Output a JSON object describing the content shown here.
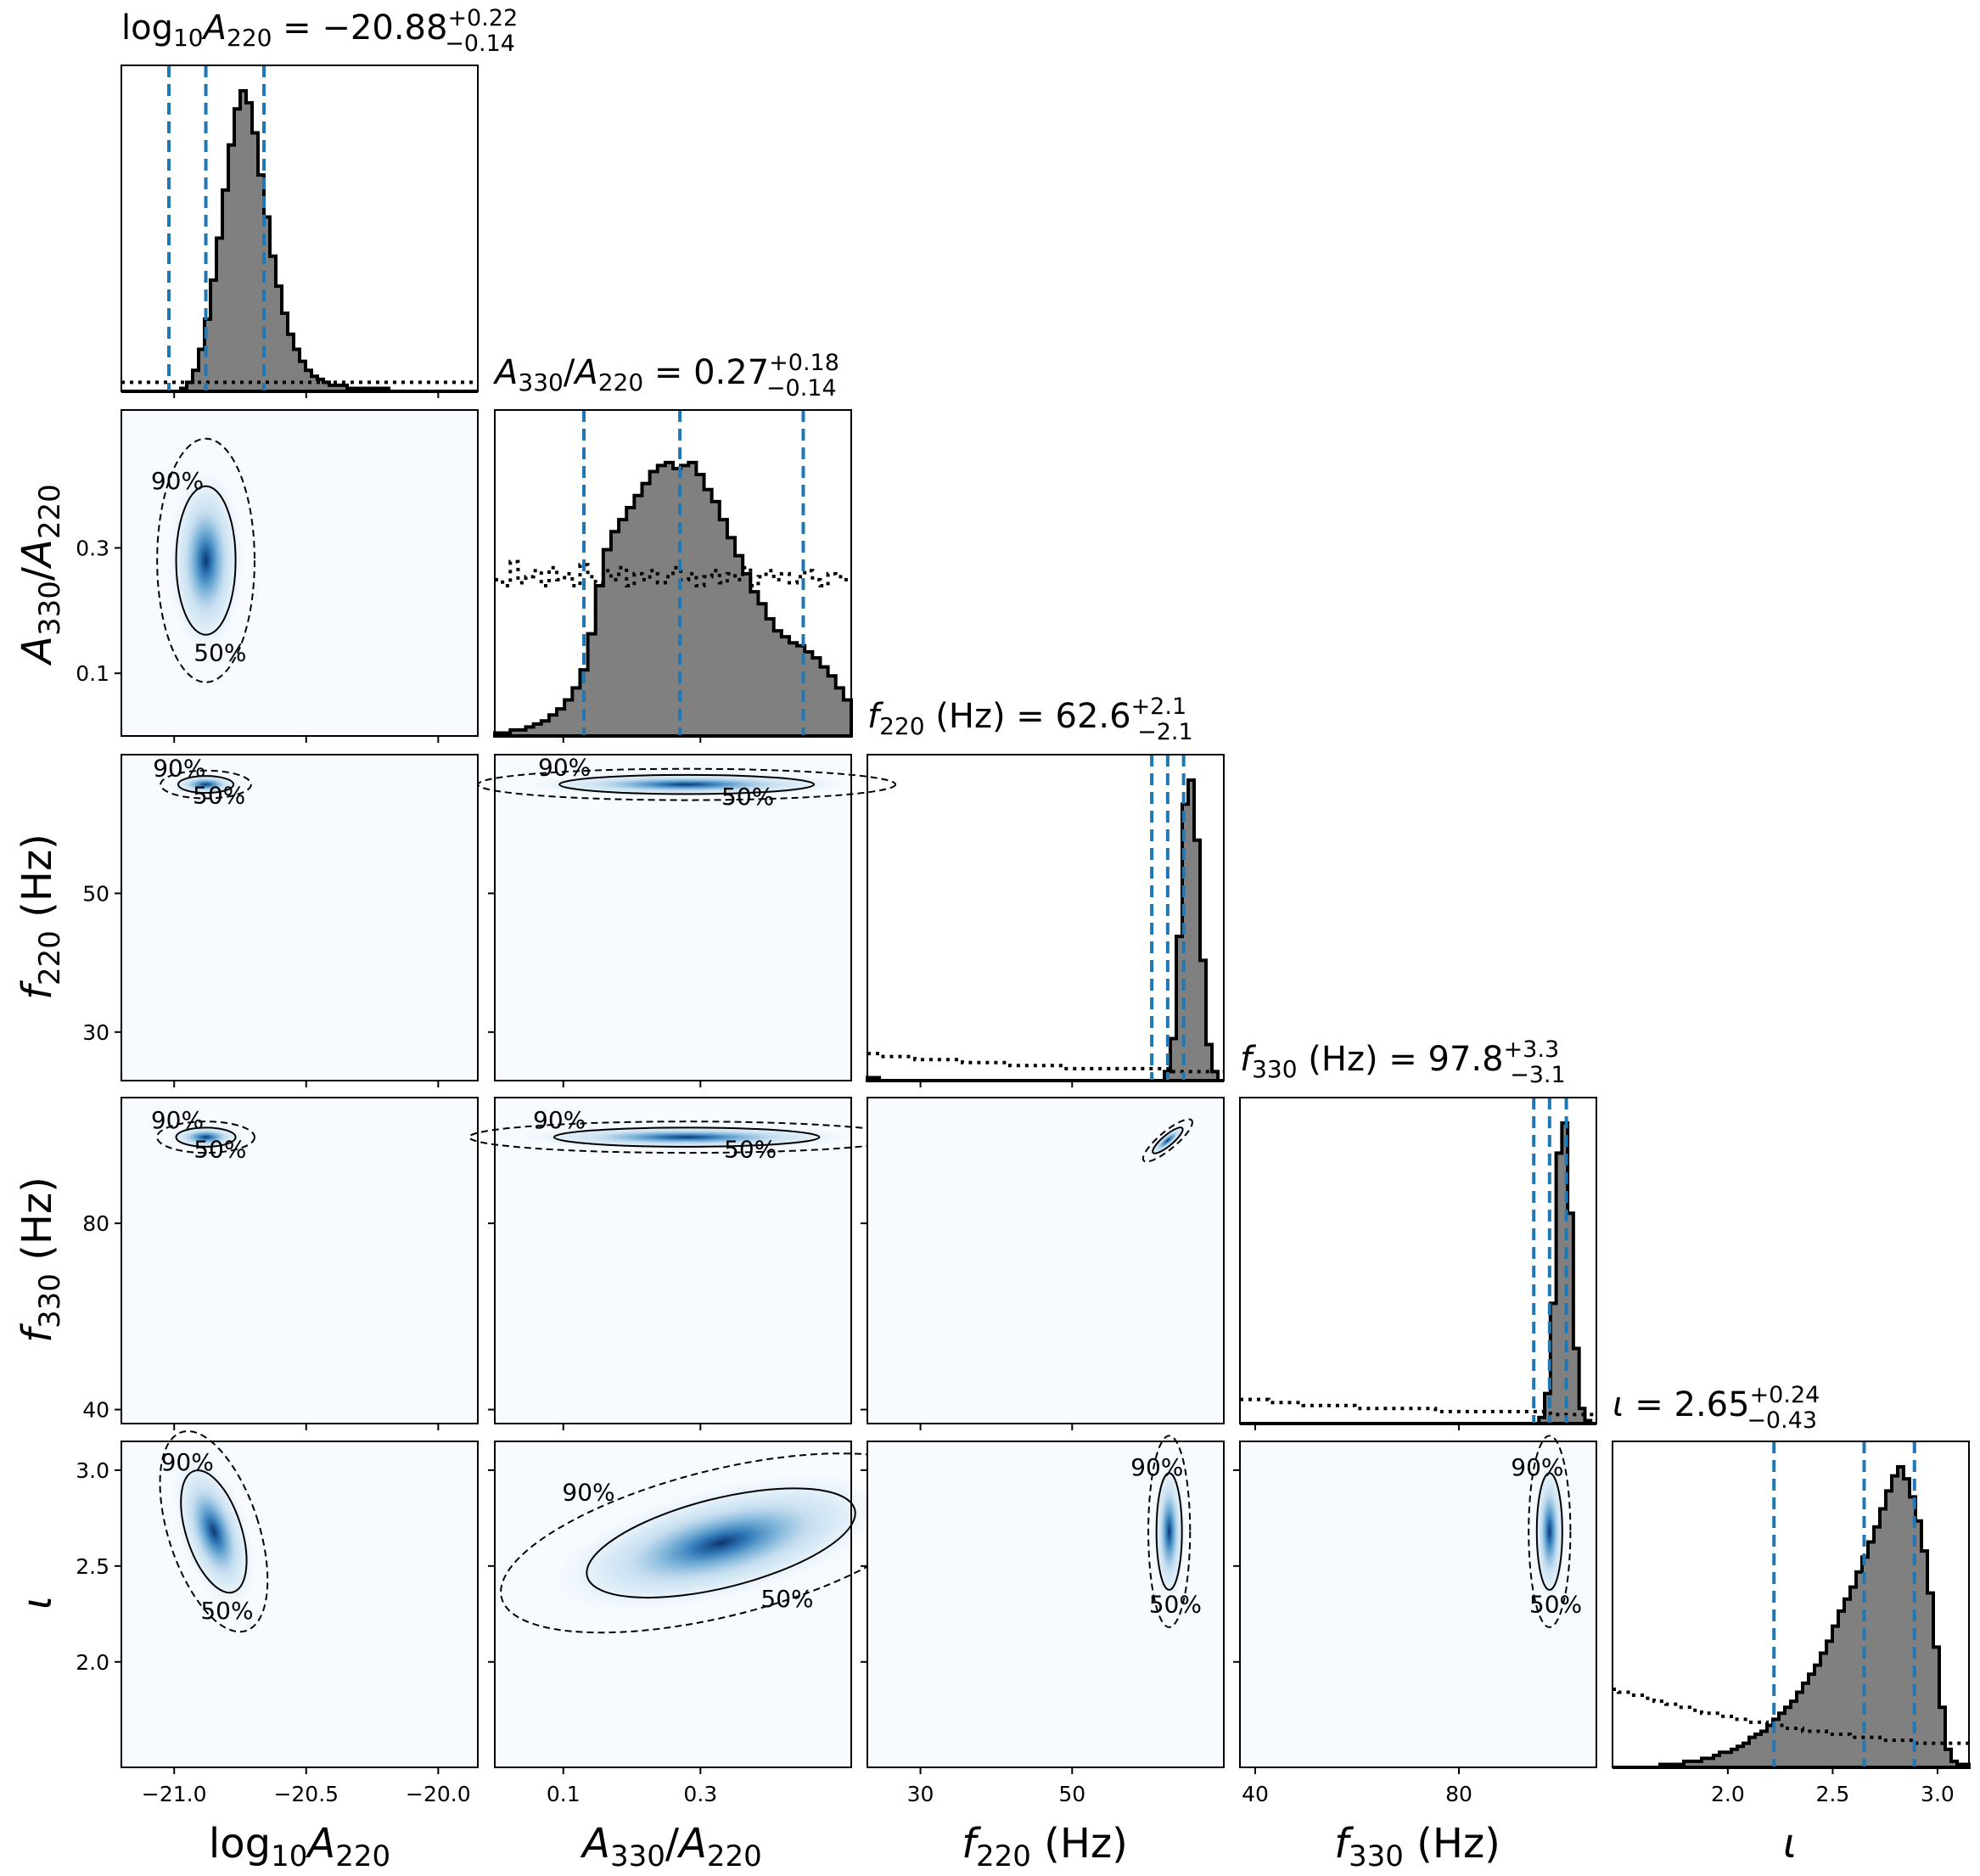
{
  "chart_data": {
    "type": "corner",
    "parameters": [
      {
        "key": "logA220",
        "label": "log10A220",
        "range": [
          -21.2,
          -19.85
        ],
        "ticks": [
          -21.0,
          -20.5,
          -20.0
        ],
        "tick_labels": [
          "−21.0",
          "−20.5",
          "−20.0"
        ],
        "title": {
          "median": "−20.88",
          "plus": "+0.22",
          "minus": "−0.14"
        },
        "quantiles": [
          -21.02,
          -20.88,
          -20.66
        ]
      },
      {
        "key": "ratio",
        "label": "A330/A220",
        "range": [
          0.0,
          0.52
        ],
        "ticks": [
          0.1,
          0.3
        ],
        "tick_labels": [
          "0.1",
          "0.3"
        ],
        "title": {
          "median": "0.27",
          "plus": "+0.18",
          "minus": "−0.14"
        },
        "quantiles": [
          0.13,
          0.27,
          0.45
        ]
      },
      {
        "key": "f220",
        "label": "f220 (Hz)",
        "range": [
          23,
          70
        ],
        "ticks": [
          30,
          50
        ],
        "tick_labels": [
          "30",
          "50"
        ],
        "title": {
          "median": "62.6",
          "plus": "+2.1",
          "minus": "−2.1"
        },
        "quantiles": [
          60.5,
          62.6,
          64.7
        ]
      },
      {
        "key": "f330",
        "label": "f330 (Hz)",
        "range": [
          37,
          107
        ],
        "ticks": [
          40,
          80
        ],
        "tick_labels": [
          "40",
          "80"
        ],
        "title": {
          "median": "97.8",
          "plus": "+3.3",
          "minus": "−3.1"
        },
        "quantiles": [
          94.7,
          97.8,
          101.1
        ]
      },
      {
        "key": "iota",
        "label": "ι",
        "range": [
          1.45,
          3.15
        ],
        "ticks": [
          2.0,
          2.5,
          3.0
        ],
        "tick_labels": [
          "2.0",
          "2.5",
          "3.0"
        ],
        "title": {
          "median": "2.65",
          "plus": "+0.24",
          "minus": "−0.43"
        },
        "quantiles": [
          2.22,
          2.65,
          2.89
        ]
      }
    ],
    "marginals": [
      {
        "posterior": [
          0,
          0,
          0,
          0,
          0,
          0,
          0,
          0,
          0,
          0,
          1,
          3,
          7,
          14,
          24,
          37,
          51,
          67,
          82,
          94,
          100,
          96,
          86,
          72,
          58,
          45,
          35,
          26,
          19,
          14,
          10,
          7,
          5,
          4,
          3,
          2,
          2,
          2,
          1,
          1,
          1,
          1,
          1,
          1,
          1,
          0,
          0,
          0,
          0,
          0,
          0,
          0,
          0,
          0,
          0,
          0,
          0,
          0,
          0,
          0
        ],
        "prior": [
          3,
          3,
          3,
          3,
          3,
          3,
          3,
          3,
          3,
          3,
          3,
          3,
          3,
          3,
          3,
          3,
          3,
          3,
          3,
          3,
          3,
          3,
          3,
          3,
          3,
          3,
          3,
          3,
          3,
          3,
          3,
          3,
          3,
          3,
          3,
          3,
          3,
          3,
          3,
          3,
          3,
          3,
          3,
          3,
          3,
          3,
          3,
          3,
          3,
          3,
          3,
          3,
          3,
          3,
          3,
          3,
          3,
          3,
          3,
          3
        ]
      },
      {
        "posterior": [
          1,
          1,
          2,
          2,
          3,
          4,
          5,
          7,
          9,
          12,
          16,
          22,
          34,
          50,
          62,
          68,
          72,
          76,
          80,
          84,
          88,
          90,
          91,
          89,
          90,
          91,
          87,
          82,
          78,
          72,
          66,
          60,
          54,
          48,
          44,
          39,
          35,
          33,
          31,
          30,
          28,
          26,
          23,
          20,
          16,
          12
        ],
        "prior": [
          52,
          50,
          58,
          51,
          53,
          55,
          50,
          56,
          52,
          54,
          50,
          57,
          53,
          51,
          55,
          52,
          56,
          50,
          54,
          52,
          55,
          51,
          53,
          56,
          52,
          54,
          50,
          53,
          55,
          51,
          54,
          52,
          56,
          50,
          53,
          55,
          52,
          54,
          51,
          53,
          55,
          52,
          50,
          54,
          53,
          52
        ]
      },
      {
        "posterior": [
          1,
          1,
          0,
          0,
          0,
          0,
          0,
          0,
          0,
          0,
          0,
          0,
          0,
          0,
          0,
          0,
          0,
          0,
          0,
          0,
          0,
          0,
          0,
          0,
          0,
          0,
          0,
          0,
          0,
          0,
          0,
          0,
          0,
          0,
          0,
          0,
          0,
          0,
          0,
          0,
          0,
          0,
          0,
          0,
          0,
          0,
          0,
          0,
          0,
          0,
          3,
          14,
          48,
          92,
          100,
          80,
          40,
          12,
          3,
          0
        ],
        "prior": [
          9,
          9,
          8,
          8,
          8,
          8,
          8,
          8,
          7,
          7,
          7,
          7,
          7,
          7,
          7,
          7,
          6,
          6,
          6,
          6,
          6,
          6,
          6,
          6,
          5,
          5,
          5,
          5,
          5,
          5,
          5,
          5,
          5,
          4,
          4,
          4,
          4,
          4,
          4,
          4,
          4,
          4,
          4,
          4,
          4,
          4,
          4,
          4,
          4,
          4,
          4,
          3,
          3,
          3,
          3,
          3,
          3,
          3,
          3,
          3
        ]
      },
      {
        "posterior": [
          0,
          0,
          0,
          0,
          0,
          0,
          0,
          0,
          0,
          0,
          0,
          0,
          0,
          0,
          0,
          0,
          0,
          0,
          0,
          0,
          0,
          0,
          0,
          0,
          0,
          0,
          0,
          0,
          0,
          0,
          0,
          0,
          0,
          0,
          0,
          0,
          0,
          0,
          0,
          0,
          0,
          0,
          0,
          0,
          0,
          0,
          0,
          0,
          0,
          0,
          0,
          0,
          2,
          10,
          40,
          90,
          100,
          70,
          25,
          5,
          1,
          0
        ],
        "prior": [
          8,
          8,
          8,
          8,
          8,
          7,
          7,
          7,
          7,
          7,
          7,
          6,
          6,
          6,
          6,
          6,
          6,
          6,
          6,
          6,
          5,
          5,
          5,
          5,
          5,
          5,
          5,
          5,
          5,
          5,
          5,
          5,
          5,
          5,
          4,
          4,
          4,
          4,
          4,
          4,
          4,
          4,
          4,
          4,
          4,
          4,
          4,
          4,
          4,
          4,
          4,
          4,
          4,
          4,
          3,
          3,
          3,
          3,
          3,
          3,
          3,
          3
        ]
      },
      {
        "posterior": [
          0,
          0,
          0,
          0,
          0,
          0,
          0,
          0,
          1,
          1,
          1,
          1,
          2,
          2,
          2,
          3,
          3,
          4,
          5,
          5,
          6,
          7,
          8,
          10,
          11,
          12,
          14,
          16,
          18,
          20,
          22,
          25,
          28,
          31,
          34,
          38,
          42,
          47,
          52,
          56,
          60,
          65,
          70,
          75,
          80,
          86,
          92,
          97,
          100,
          96,
          90,
          82,
          72,
          58,
          40,
          20,
          6,
          2,
          1,
          1
        ],
        "prior": [
          26,
          25,
          25,
          24,
          24,
          23,
          23,
          22,
          22,
          21,
          21,
          20,
          20,
          19,
          19,
          18,
          18,
          18,
          17,
          17,
          16,
          16,
          16,
          15,
          15,
          15,
          14,
          14,
          14,
          13,
          13,
          13,
          12,
          12,
          12,
          12,
          11,
          11,
          11,
          11,
          10,
          10,
          10,
          10,
          10,
          9,
          9,
          9,
          9,
          9,
          9,
          8,
          8,
          8,
          8,
          8,
          8,
          8,
          8,
          8
        ]
      }
    ],
    "contour_levels": [
      "50%",
      "90%"
    ],
    "credible_interval": "90%",
    "colors": {
      "posterior_fill": "#808080",
      "quantile_line": "#1f77b4",
      "density_low": "#f7fbff",
      "density_high": "#08306b"
    },
    "grid": false
  }
}
